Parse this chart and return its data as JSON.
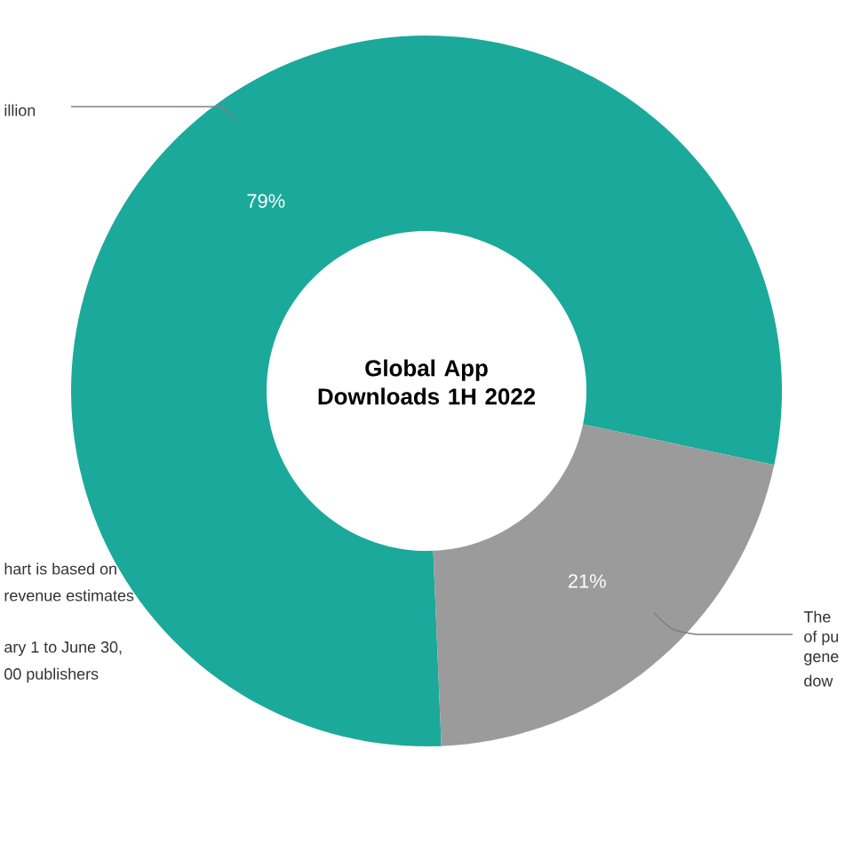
{
  "chart_data": {
    "type": "donut",
    "title": "Global App Downloads 1H 2022",
    "categories": [
      null,
      null
    ],
    "values": [
      79,
      21
    ],
    "colors": [
      "#1ba99b",
      "#9b9b9b"
    ],
    "value_labels": [
      "79%",
      "21%"
    ],
    "annotations": [
      "illion",
      "hart is based on",
      "revenue estimates",
      "ary 1 to June 30,",
      "00 publishers",
      "The",
      "of pu",
      "gene",
      "dow"
    ]
  }
}
